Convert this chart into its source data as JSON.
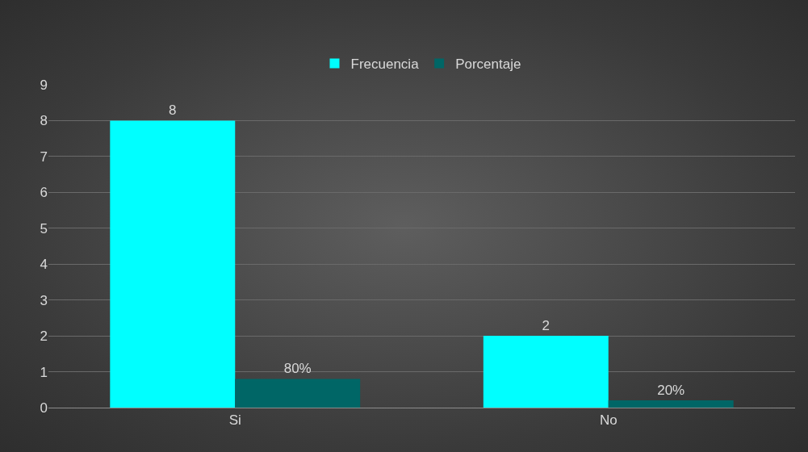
{
  "chart_data": {
    "type": "bar",
    "categories": [
      "Si",
      "No"
    ],
    "series": [
      {
        "name": "Frecuencia",
        "color": "#00ffff",
        "values": [
          8,
          2
        ],
        "value_labels": [
          "8",
          "2"
        ]
      },
      {
        "name": "Porcentaje",
        "color": "#006666",
        "values": [
          0.8,
          0.2
        ],
        "value_labels": [
          "80%",
          "20%"
        ]
      }
    ],
    "ylim": [
      0,
      9
    ],
    "yticks": [
      0,
      1,
      2,
      3,
      4,
      5,
      6,
      7,
      8,
      9
    ],
    "grid": "y",
    "legend": "top"
  }
}
